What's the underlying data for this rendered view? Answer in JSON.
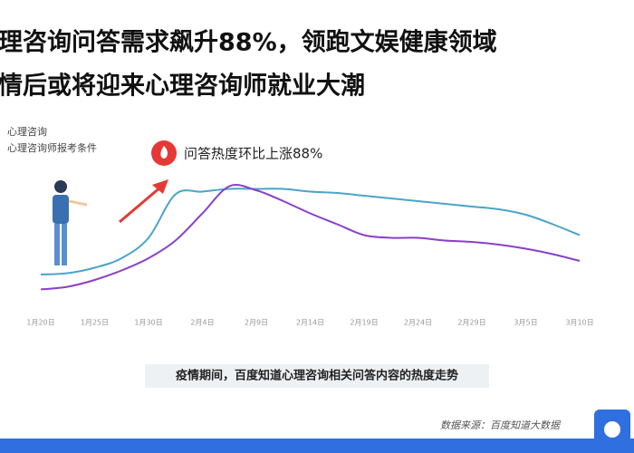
{
  "header": {
    "line1": "理咨询问答需求飙升88%，领跑文娱健康领域",
    "line2": "情后或将迎来心理咨询师就业大潮"
  },
  "chart_data": {
    "type": "line",
    "categories": [
      "1月20日",
      null,
      "1月25日",
      null,
      "1月30日",
      null,
      "2月4日",
      null,
      "2月9日",
      null,
      "2月14日",
      null,
      "2月19日",
      null,
      "2月24日",
      null,
      "2月29日",
      null,
      "3月5日",
      null,
      "3月10日"
    ],
    "series": [
      {
        "name": "心理咨询",
        "color": "#4ba4c9",
        "values": [
          18,
          19,
          23,
          30,
          45,
          77,
          79,
          81,
          81,
          81,
          79,
          78,
          76,
          74,
          72,
          70,
          68,
          66,
          62,
          55,
          47
        ]
      },
      {
        "name": "心理咨询师报考条件",
        "color": "#8b3fc8",
        "values": [
          7,
          9,
          14,
          21,
          30,
          43,
          63,
          83,
          80,
          72,
          63,
          55,
          47,
          45,
          45,
          43,
          42,
          40,
          37,
          33,
          28
        ]
      }
    ],
    "ylim": [
      0,
      100
    ],
    "annotation": "问答热度环比上涨88%",
    "caption": "疫情期间，百度知道心理咨询相关问答内容的热度走势",
    "source": "数据来源：百度知道大数据"
  }
}
